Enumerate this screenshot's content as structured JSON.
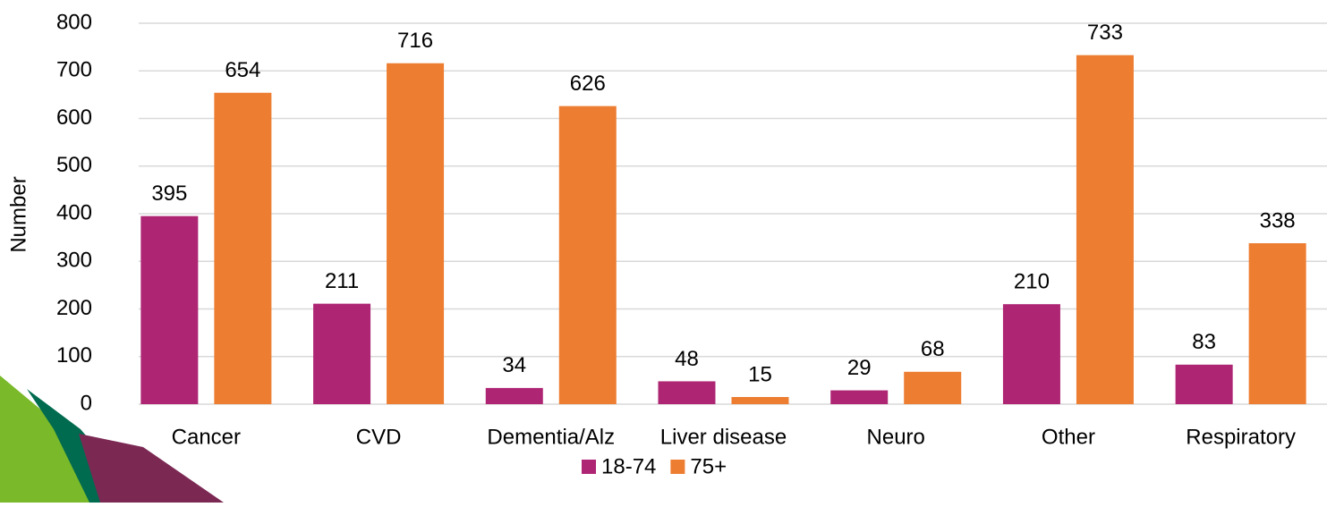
{
  "chart_data": {
    "type": "bar",
    "y_label": "Number",
    "categories": [
      "Cancer",
      "CVD",
      "Dementia/Alz",
      "Liver disease",
      "Neuro",
      "Other",
      "Respiratory"
    ],
    "series": [
      {
        "name": "18-74",
        "color": "#ae2573",
        "values": [
          395,
          211,
          34,
          48,
          29,
          210,
          83
        ]
      },
      {
        "name": "75+",
        "color": "#ed7d31",
        "values": [
          654,
          716,
          626,
          15,
          68,
          733,
          338
        ]
      }
    ],
    "ylim": [
      0,
      800
    ],
    "yticks": [
      0,
      100,
      200,
      300,
      400,
      500,
      600,
      700,
      800
    ],
    "grid": true,
    "legend": "bottom"
  }
}
